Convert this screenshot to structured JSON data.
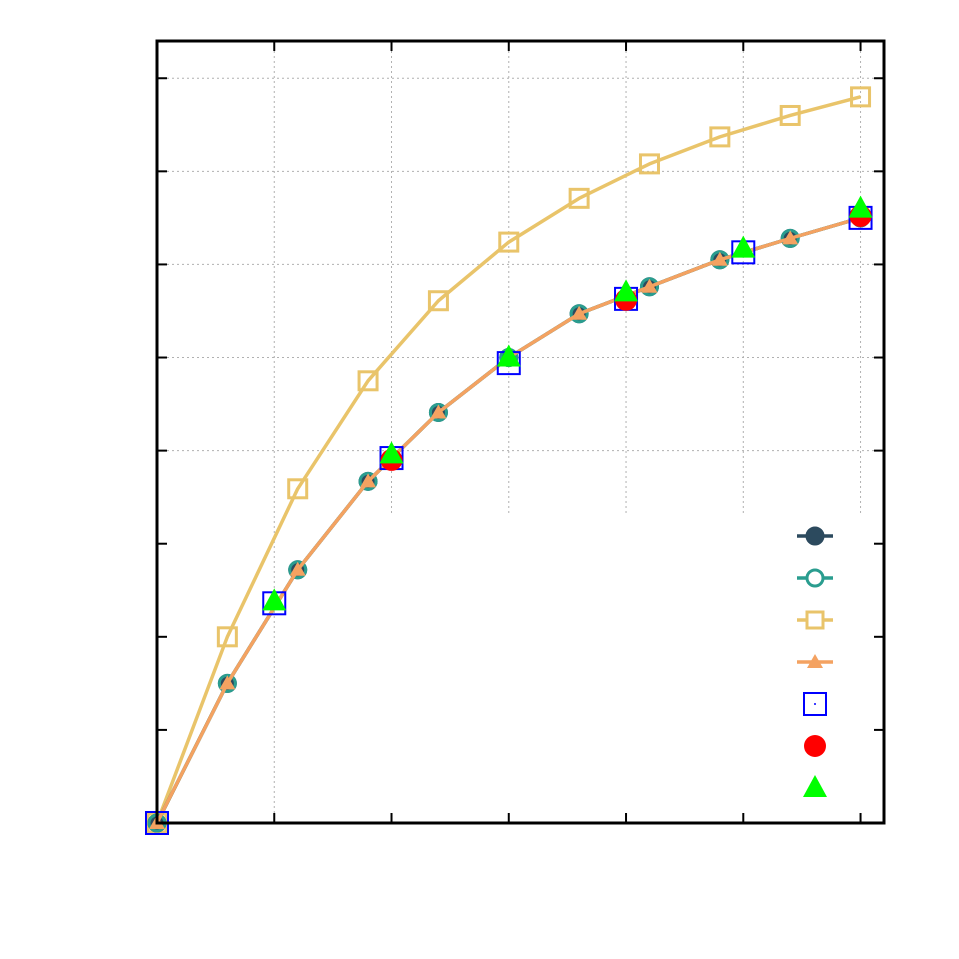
{
  "chart_data": {
    "type": "line",
    "title": "",
    "xlabel": "",
    "ylabel": "",
    "xlim": [
      0,
      3.1
    ],
    "ylim": [
      0,
      0.84
    ],
    "xticks": [
      0,
      0.5,
      1.0,
      1.5,
      2.0,
      2.5,
      3.0
    ],
    "yticks": [
      0,
      0.1,
      0.2,
      0.3,
      0.4,
      0.5,
      0.6,
      0.7,
      0.8
    ],
    "grid": true,
    "legend_position": "lower-right",
    "colors": {
      "series1": "#2c4a5e",
      "series2": "#2a9d8f",
      "series3": "#e9c46a",
      "series4": "#f4a261",
      "series5": "#0000ff",
      "series6": "#ff0000",
      "series7": "#00ff00"
    },
    "series": [
      {
        "marker": "filled-circle",
        "line": true,
        "color": "#2c4a5e",
        "x": [
          0,
          0.3,
          0.6,
          0.9,
          1.2,
          1.5,
          1.8,
          2.1,
          2.4,
          2.7,
          3.0
        ],
        "y": [
          0,
          0.15,
          0.272,
          0.367,
          0.441,
          0.5,
          0.547,
          0.576,
          0.605,
          0.628,
          0.65
        ]
      },
      {
        "marker": "open-circle",
        "line": true,
        "color": "#2a9d8f",
        "x": [
          0,
          0.3,
          0.6,
          0.9,
          1.2,
          1.5,
          1.8,
          2.1,
          2.4,
          2.7,
          3.0
        ],
        "y": [
          0,
          0.15,
          0.272,
          0.367,
          0.441,
          0.5,
          0.547,
          0.576,
          0.605,
          0.628,
          0.65
        ]
      },
      {
        "marker": "open-square",
        "line": true,
        "color": "#e9c46a",
        "x": [
          0,
          0.3,
          0.6,
          0.9,
          1.2,
          1.5,
          1.8,
          2.1,
          2.4,
          2.7,
          3.0
        ],
        "y": [
          0,
          0.2,
          0.359,
          0.475,
          0.561,
          0.624,
          0.671,
          0.708,
          0.737,
          0.76,
          0.78
        ]
      },
      {
        "marker": "filled-triangle",
        "line": true,
        "color": "#f4a261",
        "x": [
          0,
          0.3,
          0.6,
          0.9,
          1.2,
          1.5,
          1.8,
          2.1,
          2.4,
          2.7,
          3.0
        ],
        "y": [
          0,
          0.15,
          0.272,
          0.367,
          0.441,
          0.5,
          0.547,
          0.576,
          0.605,
          0.628,
          0.65
        ]
      },
      {
        "marker": "open-square-dot",
        "line": false,
        "color": "#0000ff",
        "x": [
          0,
          0.5,
          1.0,
          1.5,
          2.0,
          2.5,
          3.0
        ],
        "y": [
          0,
          0.236,
          0.392,
          0.494,
          0.563,
          0.613,
          0.65
        ]
      },
      {
        "marker": "filled-circle-large",
        "line": false,
        "color": "#ff0000",
        "x": [
          1.0,
          2.0,
          3.0
        ],
        "y": [
          0.39,
          0.562,
          0.652
        ]
      },
      {
        "marker": "filled-triangle-large",
        "line": false,
        "color": "#00ff00",
        "x": [
          0.5,
          1.0,
          1.5,
          2.0,
          2.5,
          3.0
        ],
        "y": [
          0.238,
          0.396,
          0.5,
          0.57,
          0.617,
          0.66
        ]
      }
    ]
  }
}
